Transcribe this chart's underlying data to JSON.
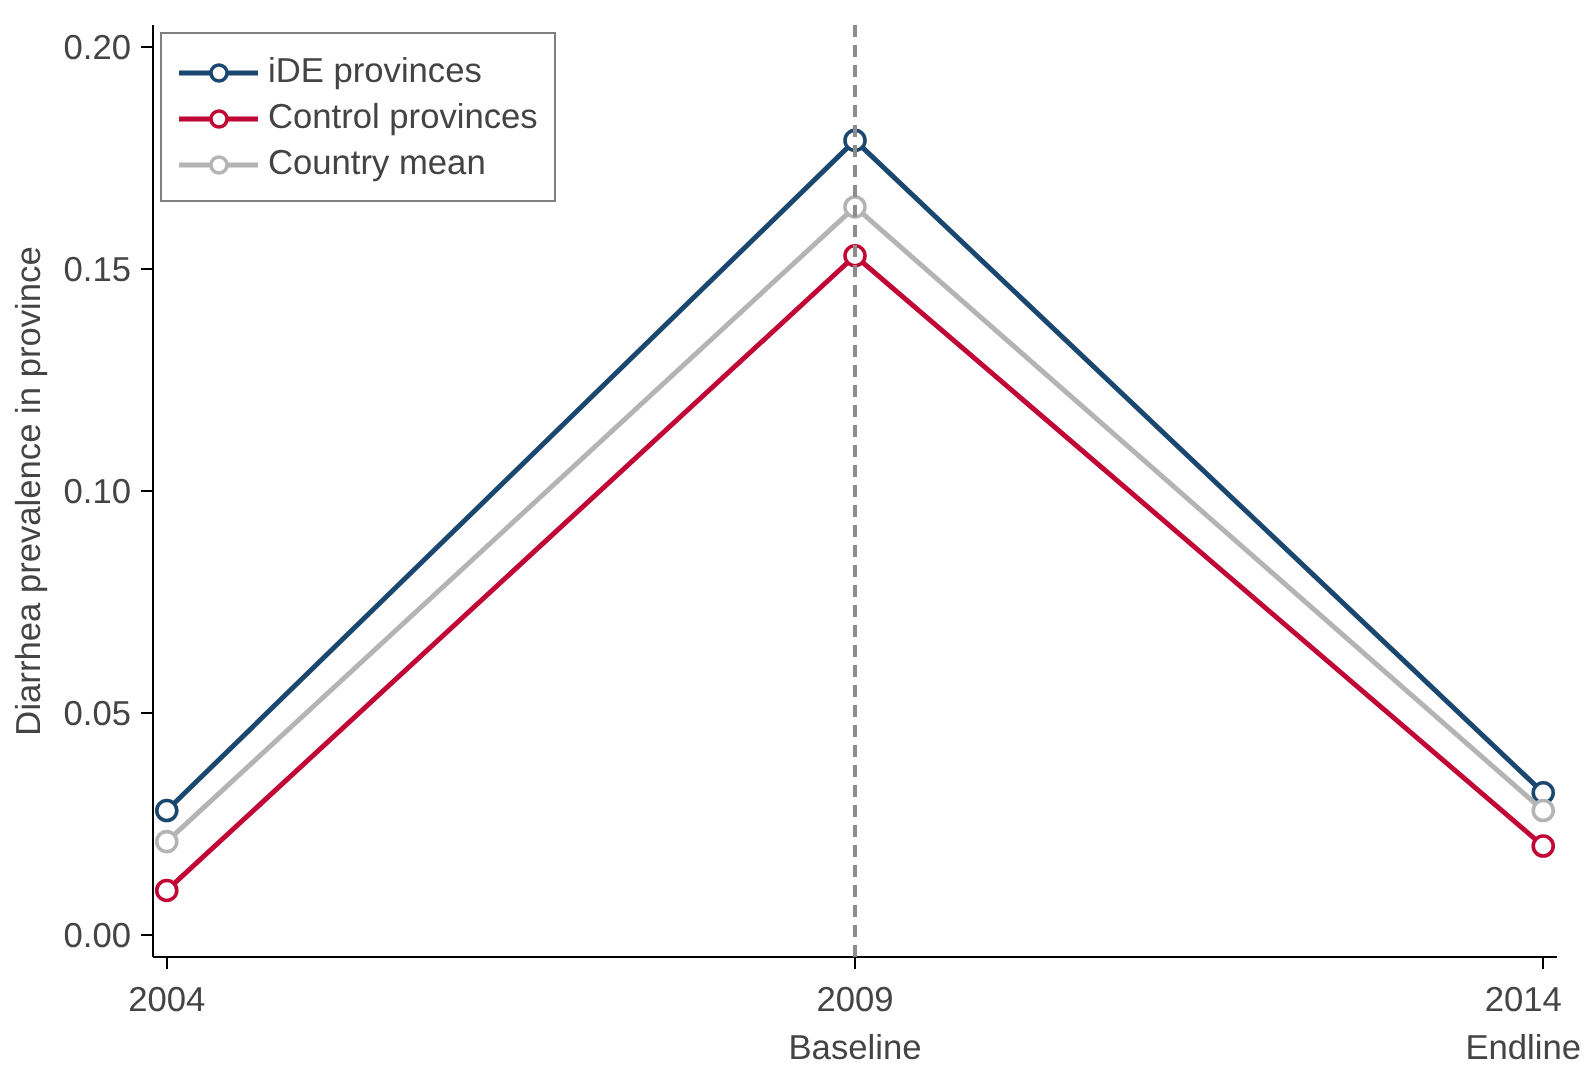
{
  "chart_data": {
    "type": "line",
    "ylabel": "Diarrhea prevalence in province",
    "x": [
      2004,
      2009,
      2014
    ],
    "series": [
      {
        "name": "iDE provinces",
        "color": "#1a476f",
        "values": [
          0.028,
          0.179,
          0.032
        ]
      },
      {
        "name": "Control provinces",
        "color": "#c10534",
        "values": [
          0.01,
          0.153,
          0.02
        ]
      },
      {
        "name": "Country mean",
        "color": "#b4b4b4",
        "values": [
          0.021,
          0.164,
          0.028
        ]
      }
    ],
    "xlim": [
      2003.9,
      2014.1
    ],
    "ylim": [
      -0.005,
      0.205
    ],
    "xticks": [
      2004,
      {
        "value": 2009,
        "label": "2009\nBaseline"
      },
      {
        "value": 2014,
        "label": "2014\nEndline"
      }
    ],
    "yticks": [
      {
        "value": 0,
        "label": "0.00"
      },
      {
        "value": 0.05,
        "label": "0.05"
      },
      {
        "value": 0.1,
        "label": "0.10"
      },
      {
        "value": 0.15,
        "label": "0.15"
      },
      {
        "value": 0.2,
        "label": "0.20"
      }
    ],
    "ref_lines": [
      {
        "axis": "x",
        "value": 2009,
        "color": "#8c8c8c",
        "line_style": "dashed"
      }
    ],
    "marker": "circle",
    "line_style": "solid",
    "legend": "top left",
    "grid": false
  }
}
